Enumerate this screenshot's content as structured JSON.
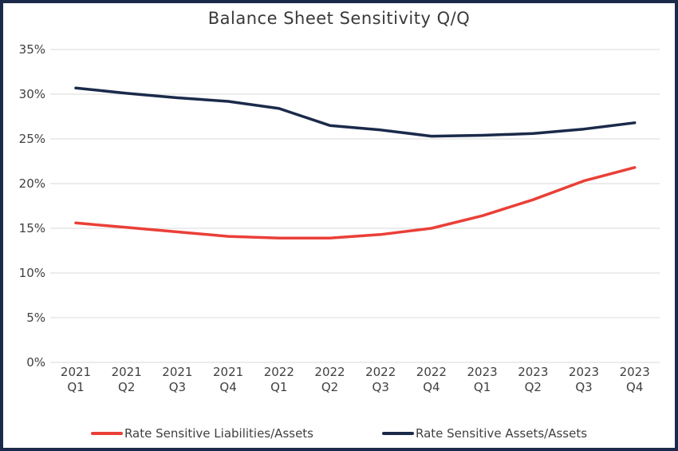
{
  "colors": {
    "frame_border": "#1b2a4a",
    "grid": "#d9d9d9",
    "title_text": "#3a3a3a",
    "axis_text": "#404040",
    "background": "#ffffff"
  },
  "chart_data": {
    "type": "line",
    "title": "Balance Sheet Sensitivity Q/Q",
    "categories": [
      [
        "2021",
        "Q1"
      ],
      [
        "2021",
        "Q2"
      ],
      [
        "2021",
        "Q3"
      ],
      [
        "2021",
        "Q4"
      ],
      [
        "2022",
        "Q1"
      ],
      [
        "2022",
        "Q2"
      ],
      [
        "2022",
        "Q3"
      ],
      [
        "2022",
        "Q4"
      ],
      [
        "2023",
        "Q1"
      ],
      [
        "2023",
        "Q2"
      ],
      [
        "2023",
        "Q3"
      ],
      [
        "2023",
        "Q4"
      ]
    ],
    "series": [
      {
        "name": "Rate Sensitive Liabilities/Assets",
        "color": "#ea3f37",
        "values": [
          15.6,
          15.1,
          14.6,
          14.1,
          13.9,
          13.9,
          14.3,
          15.0,
          16.4,
          18.2,
          20.3,
          21.8
        ]
      },
      {
        "name": "Rate Sensitive Assets/Assets",
        "color": "#1b2a4a",
        "values": [
          30.7,
          30.1,
          29.6,
          29.2,
          28.4,
          26.5,
          26.0,
          25.3,
          25.4,
          25.6,
          26.1,
          26.8
        ]
      }
    ],
    "ylim": [
      0,
      35
    ],
    "y_ticks": {
      "values": [
        0,
        5,
        10,
        15,
        20,
        25,
        30,
        35
      ],
      "labels": [
        "0%",
        "5%",
        "10%",
        "15%",
        "20%",
        "25%",
        "30%",
        "35%"
      ]
    },
    "xlabel": "",
    "ylabel": "",
    "grid": "horizontal",
    "legend_position": "bottom"
  }
}
